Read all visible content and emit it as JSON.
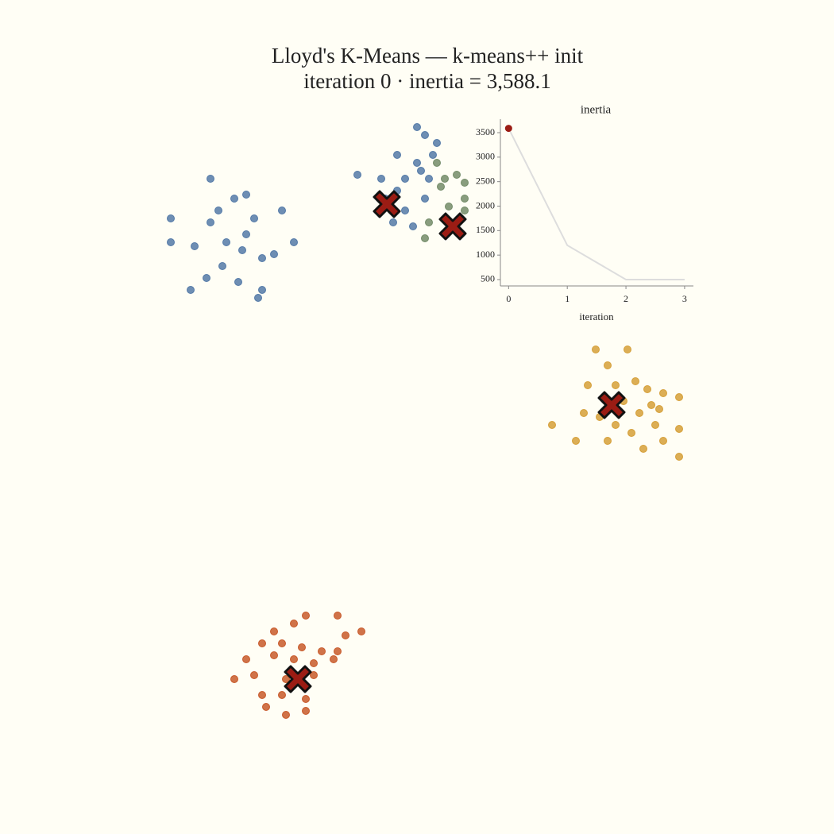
{
  "chart_data": [
    {
      "type": "scatter",
      "title": "Lloyd's K-Means — k-means++ init",
      "subtitle": "iteration 0  ·  inertia = 3,588.1",
      "xlim": [
        -8,
        8
      ],
      "ylim": [
        -8,
        8
      ],
      "series": [
        {
          "color": "#4a72a3",
          "marker": "circle",
          "x": [
            -5.2,
            -4.4,
            -4.9,
            -4.1,
            -5.6,
            -4.6,
            -3.9,
            -5.3,
            -4.5,
            -6.2,
            -6.2,
            -3.4,
            -3.9,
            -4.0,
            -5.2,
            -4.3,
            -4.8,
            -3.6,
            -5.7,
            -3.1,
            -4.3,
            -5.0,
            0.0,
            0.2,
            -0.5,
            0.5,
            -0.3,
            0.1,
            -0.5,
            -0.8,
            0.2,
            -1.5,
            -0.6,
            0.0,
            0.4,
            -0.3,
            -0.1,
            0.3,
            -0.9
          ],
          "y": [
            4.9,
            4.2,
            3.8,
            5.0,
            4.3,
            5.5,
            4.0,
            3.5,
            3.4,
            5.0,
            4.4,
            5.2,
            3.2,
            3.0,
            6.0,
            4.6,
            4.4,
            4.1,
            3.2,
            4.4,
            5.6,
            5.2,
            7.3,
            7.1,
            6.6,
            6.9,
            6.0,
            6.2,
            5.7,
            5.5,
            5.5,
            6.1,
            4.9,
            6.4,
            6.6,
            5.2,
            4.8,
            6.0,
            6.0
          ]
        },
        {
          "color": "#6b8560",
          "marker": "circle",
          "x": [
            0.5,
            0.7,
            1.0,
            1.2,
            0.8,
            1.2,
            1.0,
            0.2,
            1.2,
            0.3,
            0.6
          ],
          "y": [
            6.4,
            6.0,
            6.1,
            5.9,
            5.3,
            5.2,
            4.7,
            4.5,
            5.5,
            4.9,
            5.8
          ]
        },
        {
          "color": "#d39a2d",
          "marker": "circle",
          "x": [
            4.8,
            5.0,
            5.5,
            5.8,
            6.2,
            6.6,
            4.3,
            4.2,
            5.2,
            5.9,
            6.0,
            5.4,
            4.8,
            5.7,
            6.2,
            6.6,
            4.0,
            3.4,
            4.5,
            5.3,
            6.6,
            5.0,
            5.6,
            6.1,
            4.6
          ],
          "y": [
            1.3,
            0.8,
            0.9,
            0.7,
            0.6,
            0.5,
            0.8,
            0.1,
            0.4,
            0.3,
            -0.2,
            -0.4,
            -0.6,
            -0.8,
            -0.6,
            -0.3,
            -0.6,
            -0.2,
            1.7,
            1.7,
            -1.0,
            -0.2,
            0.1,
            0.2,
            0.0
          ]
        },
        {
          "color": "#c4501e",
          "marker": "circle",
          "x": [
            -3.1,
            -3.6,
            -2.8,
            -2.0,
            -1.4,
            -3.9,
            -3.4,
            -2.9,
            -2.4,
            -2.0,
            -4.3,
            -3.6,
            -3.1,
            -2.6,
            -2.1,
            -4.1,
            -3.3,
            -2.6,
            -4.6,
            -3.4,
            -2.8,
            -3.8,
            -2.8,
            -3.3,
            -1.8,
            -3.9
          ],
          "y": [
            -5.2,
            -5.4,
            -5.0,
            -5.0,
            -5.4,
            -5.7,
            -5.7,
            -5.8,
            -5.9,
            -5.9,
            -6.1,
            -6.0,
            -6.1,
            -6.2,
            -6.1,
            -6.5,
            -6.6,
            -6.5,
            -6.6,
            -7.0,
            -7.1,
            -7.3,
            -7.4,
            -7.5,
            -5.5,
            -7.0
          ]
        },
        {
          "color": "#9b1c14",
          "marker": "x",
          "x": [
            -0.76,
            0.9,
            4.9,
            -3.0
          ],
          "y": [
            5.36,
            4.8,
            0.3,
            -6.6
          ]
        }
      ]
    },
    {
      "type": "line",
      "title": "inertia",
      "x_label": "iteration",
      "x": [
        0,
        1,
        2,
        3
      ],
      "values": [
        3588.1,
        1200,
        500,
        500
      ],
      "color": "#dddddd",
      "highlight_index": 0,
      "highlight_color": "#9b1c14",
      "xlim": [
        -0.14,
        3.15
      ],
      "ylim": [
        370,
        3776
      ],
      "xticks": [
        0,
        1,
        2,
        3
      ],
      "yticks": [
        500,
        1000,
        1500,
        2000,
        2500,
        3000,
        3500
      ]
    }
  ]
}
